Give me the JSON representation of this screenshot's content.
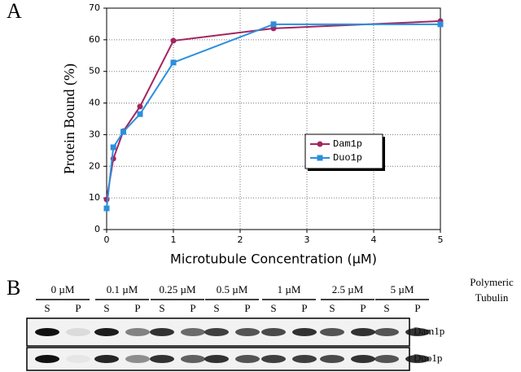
{
  "chart_data": {
    "type": "line",
    "x_label": "Microtubule Concentration (µM)",
    "y_label": "Protein Bound (%)",
    "x": [
      0,
      0.1,
      0.25,
      0.5,
      1,
      2.5,
      5
    ],
    "series": [
      {
        "name": "Dam1p",
        "color": "#a3255f",
        "marker": "circle",
        "values": [
          9.5,
          22.4,
          31.1,
          38.9,
          59.7,
          63.6,
          65.9
        ]
      },
      {
        "name": "Duo1p",
        "color": "#2b8fde",
        "marker": "square",
        "values": [
          6.7,
          26,
          30.9,
          36.5,
          52.8,
          64.9,
          64.9
        ]
      }
    ],
    "xlim": [
      0,
      5
    ],
    "xticks": [
      0,
      1,
      2,
      3,
      4,
      5
    ],
    "ylim": [
      0,
      70
    ],
    "yticks": [
      0,
      10,
      20,
      30,
      40,
      50,
      60,
      70
    ],
    "grid": true,
    "legend": "center-right"
  },
  "panel_labels": [
    "A",
    "B"
  ],
  "blot": {
    "concentrations": [
      "0 µM",
      "0.1 µM",
      "0.25 µM",
      "0.5 µM",
      "1 µM",
      "2.5 µM",
      "5 µM"
    ],
    "header": [
      "Polymeric",
      "Tubulin"
    ],
    "lanes": [
      "S",
      "P"
    ],
    "rows": [
      "Dam1p",
      "Duo1p"
    ]
  }
}
